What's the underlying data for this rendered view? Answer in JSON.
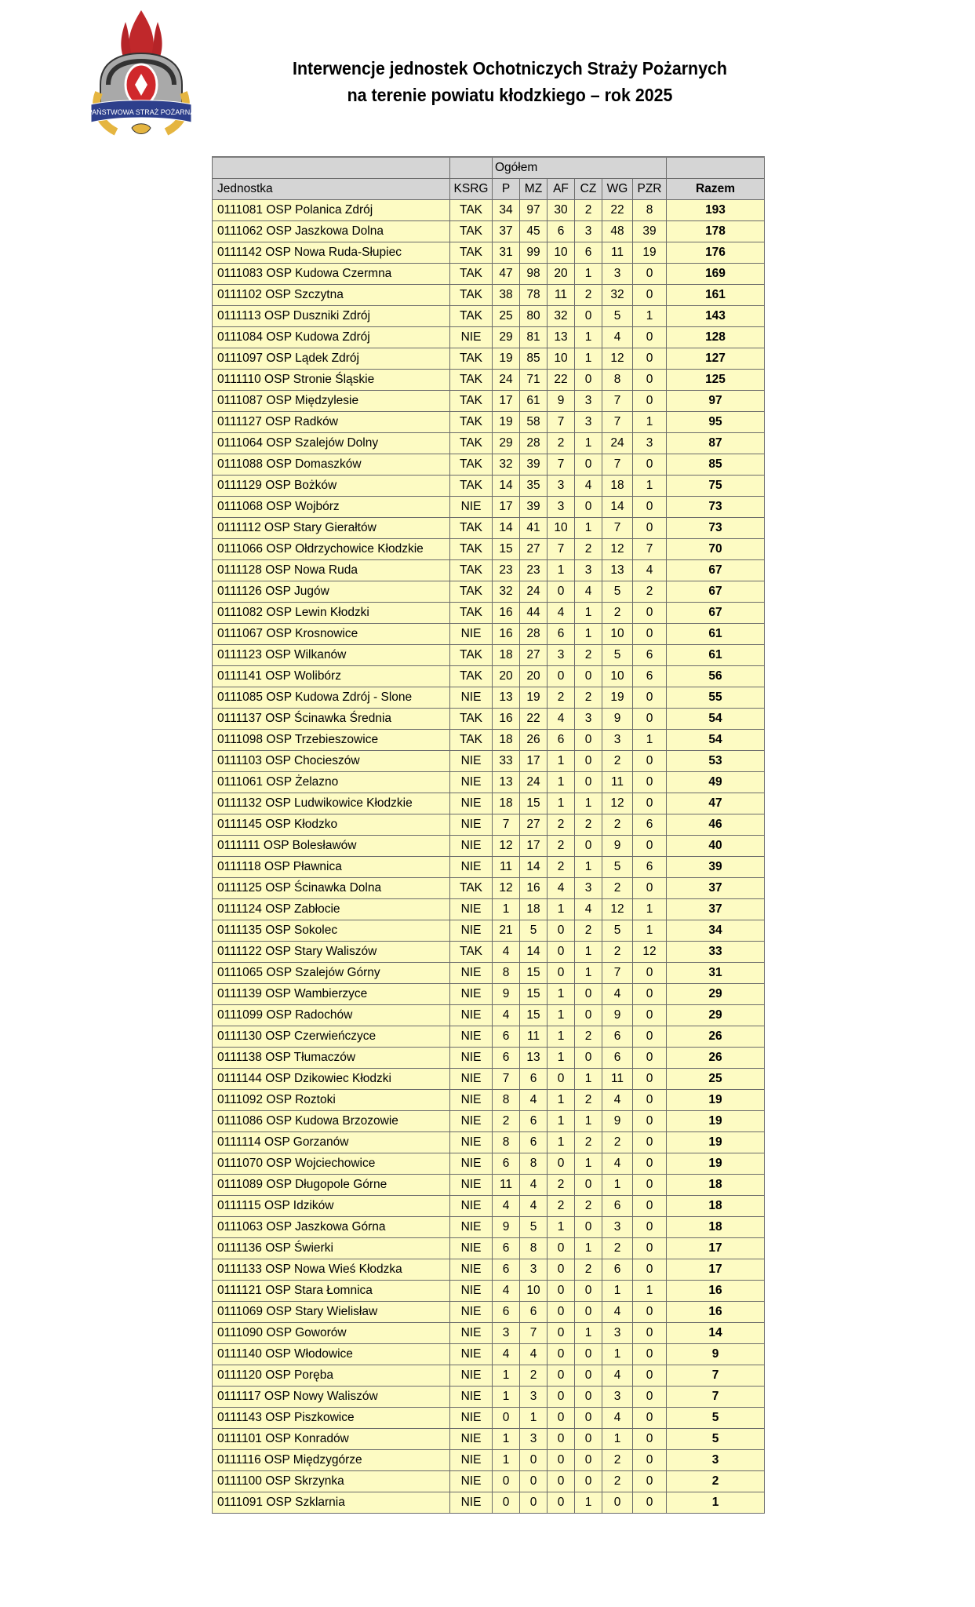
{
  "document": {
    "title_line1": "Interwencje jednostek Ochotniczych Straży Pożarnych",
    "title_line2": "na terenie powiatu kłodzkiego – rok 2025",
    "logo_text": "PAŃSTWOWA STRAŻ POŻARNA",
    "colors": {
      "row_bg": "#fdfbc3",
      "header_bg": "#d5d5d5"
    }
  },
  "table": {
    "group_header": "Ogółem",
    "columns": [
      "Jednostka",
      "KSRG",
      "P",
      "MZ",
      "AF",
      "CZ",
      "WG",
      "PZR",
      "Razem"
    ],
    "rows": [
      [
        "0111081 OSP Polanica Zdrój",
        "TAK",
        34,
        97,
        30,
        2,
        22,
        8,
        193
      ],
      [
        "0111062 OSP Jaszkowa Dolna",
        "TAK",
        37,
        45,
        6,
        3,
        48,
        39,
        178
      ],
      [
        "0111142 OSP Nowa Ruda-Słupiec",
        "TAK",
        31,
        99,
        10,
        6,
        11,
        19,
        176
      ],
      [
        "0111083 OSP Kudowa Czermna",
        "TAK",
        47,
        98,
        20,
        1,
        3,
        0,
        169
      ],
      [
        "0111102 OSP Szczytna",
        "TAK",
        38,
        78,
        11,
        2,
        32,
        0,
        161
      ],
      [
        "0111113 OSP Duszniki Zdrój",
        "TAK",
        25,
        80,
        32,
        0,
        5,
        1,
        143
      ],
      [
        "0111084 OSP Kudowa Zdrój",
        "NIE",
        29,
        81,
        13,
        1,
        4,
        0,
        128
      ],
      [
        "0111097 OSP Lądek Zdrój",
        "TAK",
        19,
        85,
        10,
        1,
        12,
        0,
        127
      ],
      [
        "0111110 OSP Stronie Śląskie",
        "TAK",
        24,
        71,
        22,
        0,
        8,
        0,
        125
      ],
      [
        "0111087 OSP Międzylesie",
        "TAK",
        17,
        61,
        9,
        3,
        7,
        0,
        97
      ],
      [
        "0111127 OSP Radków",
        "TAK",
        19,
        58,
        7,
        3,
        7,
        1,
        95
      ],
      [
        "0111064 OSP Szalejów Dolny",
        "TAK",
        29,
        28,
        2,
        1,
        24,
        3,
        87
      ],
      [
        "0111088 OSP Domaszków",
        "TAK",
        32,
        39,
        7,
        0,
        7,
        0,
        85
      ],
      [
        "0111129 OSP Bożków",
        "TAK",
        14,
        35,
        3,
        4,
        18,
        1,
        75
      ],
      [
        "0111068 OSP Wojbórz",
        "NIE",
        17,
        39,
        3,
        0,
        14,
        0,
        73
      ],
      [
        "0111112 OSP Stary Gierałtów",
        "TAK",
        14,
        41,
        10,
        1,
        7,
        0,
        73
      ],
      [
        "0111066 OSP Ołdrzychowice Kłodzkie",
        "TAK",
        15,
        27,
        7,
        2,
        12,
        7,
        70
      ],
      [
        "0111128 OSP Nowa Ruda",
        "TAK",
        23,
        23,
        1,
        3,
        13,
        4,
        67
      ],
      [
        "0111126 OSP Jugów",
        "TAK",
        32,
        24,
        0,
        4,
        5,
        2,
        67
      ],
      [
        "0111082 OSP Lewin Kłodzki",
        "TAK",
        16,
        44,
        4,
        1,
        2,
        0,
        67
      ],
      [
        "0111067 OSP Krosnowice",
        "NIE",
        16,
        28,
        6,
        1,
        10,
        0,
        61
      ],
      [
        "0111123 OSP Wilkanów",
        "TAK",
        18,
        27,
        3,
        2,
        5,
        6,
        61
      ],
      [
        "0111141 OSP Wolibórz",
        "TAK",
        20,
        20,
        0,
        0,
        10,
        6,
        56
      ],
      [
        "0111085 OSP Kudowa Zdrój - Slone",
        "NIE",
        13,
        19,
        2,
        2,
        19,
        0,
        55
      ],
      [
        "0111137 OSP Ścinawka Średnia",
        "TAK",
        16,
        22,
        4,
        3,
        9,
        0,
        54
      ],
      [
        "0111098 OSP Trzebieszowice",
        "TAK",
        18,
        26,
        6,
        0,
        3,
        1,
        54
      ],
      [
        "0111103 OSP Chocieszów",
        "NIE",
        33,
        17,
        1,
        0,
        2,
        0,
        53
      ],
      [
        "0111061 OSP Żelazno",
        "NIE",
        13,
        24,
        1,
        0,
        11,
        0,
        49
      ],
      [
        "0111132 OSP Ludwikowice Kłodzkie",
        "NIE",
        18,
        15,
        1,
        1,
        12,
        0,
        47
      ],
      [
        "0111145 OSP Kłodzko",
        "NIE",
        7,
        27,
        2,
        2,
        2,
        6,
        46
      ],
      [
        "0111111 OSP Bolesławów",
        "NIE",
        12,
        17,
        2,
        0,
        9,
        0,
        40
      ],
      [
        "0111118 OSP Pławnica",
        "NIE",
        11,
        14,
        2,
        1,
        5,
        6,
        39
      ],
      [
        "0111125 OSP Ścinawka Dolna",
        "TAK",
        12,
        16,
        4,
        3,
        2,
        0,
        37
      ],
      [
        "0111124 OSP Zabłocie",
        "NIE",
        1,
        18,
        1,
        4,
        12,
        1,
        37
      ],
      [
        "0111135 OSP Sokolec",
        "NIE",
        21,
        5,
        0,
        2,
        5,
        1,
        34
      ],
      [
        "0111122 OSP Stary Waliszów",
        "TAK",
        4,
        14,
        0,
        1,
        2,
        12,
        33
      ],
      [
        "0111065 OSP Szalejów Górny",
        "NIE",
        8,
        15,
        0,
        1,
        7,
        0,
        31
      ],
      [
        "0111139 OSP Wambierzyce",
        "NIE",
        9,
        15,
        1,
        0,
        4,
        0,
        29
      ],
      [
        "0111099 OSP Radochów",
        "NIE",
        4,
        15,
        1,
        0,
        9,
        0,
        29
      ],
      [
        "0111130 OSP Czerwieńczyce",
        "NIE",
        6,
        11,
        1,
        2,
        6,
        0,
        26
      ],
      [
        "0111138 OSP Tłumaczów",
        "NIE",
        6,
        13,
        1,
        0,
        6,
        0,
        26
      ],
      [
        "0111144 OSP Dzikowiec Kłodzki",
        "NIE",
        7,
        6,
        0,
        1,
        11,
        0,
        25
      ],
      [
        "0111092 OSP Roztoki",
        "NIE",
        8,
        4,
        1,
        2,
        4,
        0,
        19
      ],
      [
        "0111086 OSP Kudowa Brzozowie",
        "NIE",
        2,
        6,
        1,
        1,
        9,
        0,
        19
      ],
      [
        "0111114 OSP Gorzanów",
        "NIE",
        8,
        6,
        1,
        2,
        2,
        0,
        19
      ],
      [
        "0111070 OSP Wojciechowice",
        "NIE",
        6,
        8,
        0,
        1,
        4,
        0,
        19
      ],
      [
        "0111089 OSP Długopole Górne",
        "NIE",
        11,
        4,
        2,
        0,
        1,
        0,
        18
      ],
      [
        "0111115 OSP Idzików",
        "NIE",
        4,
        4,
        2,
        2,
        6,
        0,
        18
      ],
      [
        "0111063 OSP Jaszkowa Górna",
        "NIE",
        9,
        5,
        1,
        0,
        3,
        0,
        18
      ],
      [
        "0111136 OSP Świerki",
        "NIE",
        6,
        8,
        0,
        1,
        2,
        0,
        17
      ],
      [
        "0111133 OSP Nowa Wieś Kłodzka",
        "NIE",
        6,
        3,
        0,
        2,
        6,
        0,
        17
      ],
      [
        "0111121 OSP Stara Łomnica",
        "NIE",
        4,
        10,
        0,
        0,
        1,
        1,
        16
      ],
      [
        "0111069 OSP Stary Wielisław",
        "NIE",
        6,
        6,
        0,
        0,
        4,
        0,
        16
      ],
      [
        "0111090 OSP Goworów",
        "NIE",
        3,
        7,
        0,
        1,
        3,
        0,
        14
      ],
      [
        "0111140 OSP Włodowice",
        "NIE",
        4,
        4,
        0,
        0,
        1,
        0,
        9
      ],
      [
        "0111120 OSP Poręba",
        "NIE",
        1,
        2,
        0,
        0,
        4,
        0,
        7
      ],
      [
        "0111117 OSP Nowy Waliszów",
        "NIE",
        1,
        3,
        0,
        0,
        3,
        0,
        7
      ],
      [
        "0111143 OSP Piszkowice",
        "NIE",
        0,
        1,
        0,
        0,
        4,
        0,
        5
      ],
      [
        "0111101 OSP Konradów",
        "NIE",
        1,
        3,
        0,
        0,
        1,
        0,
        5
      ],
      [
        "0111116 OSP Międzygórze",
        "NIE",
        1,
        0,
        0,
        0,
        2,
        0,
        3
      ],
      [
        "0111100 OSP Skrzynka",
        "NIE",
        0,
        0,
        0,
        0,
        2,
        0,
        2
      ],
      [
        "0111091 OSP Szklarnia",
        "NIE",
        0,
        0,
        0,
        1,
        0,
        0,
        1
      ]
    ]
  }
}
